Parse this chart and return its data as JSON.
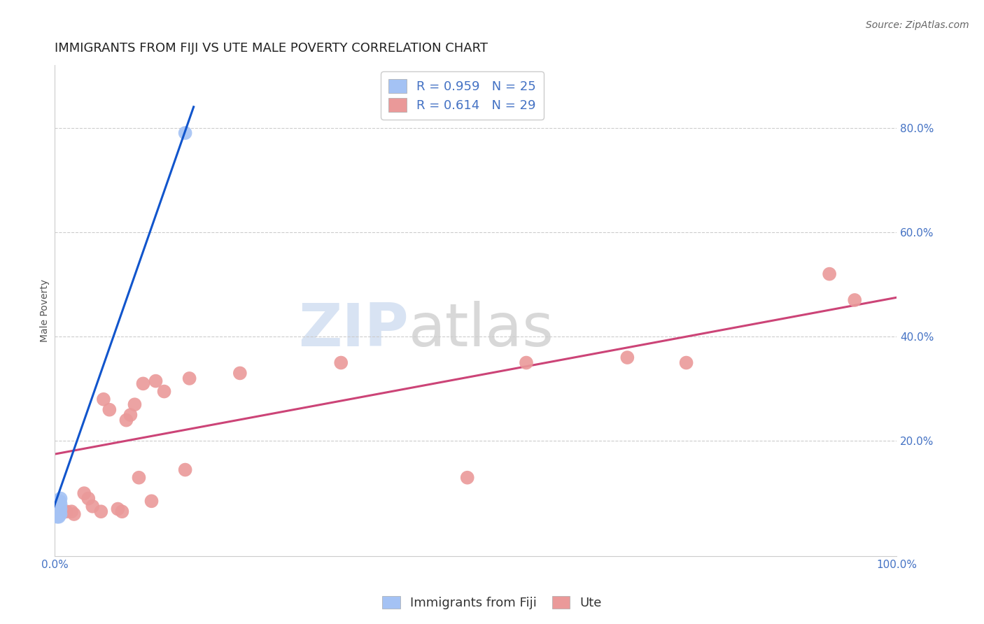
{
  "title": "IMMIGRANTS FROM FIJI VS UTE MALE POVERTY CORRELATION CHART",
  "source": "Source: ZipAtlas.com",
  "ylabel": "Male Poverty",
  "xlim": [
    0.0,
    1.0
  ],
  "ylim": [
    -0.02,
    0.92
  ],
  "xticks": [
    0.0,
    0.25,
    0.5,
    0.75,
    1.0
  ],
  "xtick_labels": [
    "0.0%",
    "",
    "",
    "",
    "100.0%"
  ],
  "yticks": [
    0.2,
    0.4,
    0.6,
    0.8
  ],
  "ytick_labels": [
    "20.0%",
    "40.0%",
    "60.0%",
    "80.0%"
  ],
  "blue_r": "0.959",
  "blue_n": "25",
  "pink_r": "0.614",
  "pink_n": "29",
  "legend_label_blue": "Immigrants from Fiji",
  "legend_label_pink": "Ute",
  "blue_color": "#a4c2f4",
  "pink_color": "#ea9999",
  "blue_line_color": "#1155cc",
  "pink_line_color": "#cc4477",
  "blue_scatter_x": [
    0.002,
    0.002,
    0.003,
    0.003,
    0.003,
    0.003,
    0.003,
    0.004,
    0.004,
    0.004,
    0.004,
    0.004,
    0.005,
    0.005,
    0.005,
    0.005,
    0.006,
    0.006,
    0.006,
    0.006,
    0.007,
    0.007,
    0.007,
    0.007,
    0.155
  ],
  "blue_scatter_y": [
    0.065,
    0.07,
    0.055,
    0.06,
    0.07,
    0.075,
    0.08,
    0.06,
    0.065,
    0.07,
    0.075,
    0.085,
    0.055,
    0.065,
    0.075,
    0.08,
    0.06,
    0.065,
    0.075,
    0.085,
    0.06,
    0.07,
    0.08,
    0.09,
    0.79
  ],
  "pink_scatter_x": [
    0.014,
    0.02,
    0.023,
    0.035,
    0.04,
    0.045,
    0.055,
    0.058,
    0.065,
    0.075,
    0.08,
    0.085,
    0.09,
    0.095,
    0.1,
    0.105,
    0.115,
    0.12,
    0.13,
    0.155,
    0.16,
    0.22,
    0.34,
    0.49,
    0.56,
    0.68,
    0.75,
    0.92,
    0.95
  ],
  "pink_scatter_y": [
    0.065,
    0.065,
    0.06,
    0.1,
    0.09,
    0.075,
    0.065,
    0.28,
    0.26,
    0.07,
    0.065,
    0.24,
    0.25,
    0.27,
    0.13,
    0.31,
    0.085,
    0.315,
    0.295,
    0.145,
    0.32,
    0.33,
    0.35,
    0.13,
    0.35,
    0.36,
    0.35,
    0.52,
    0.47
  ],
  "blue_line_x": [
    -0.005,
    0.165
  ],
  "blue_line_y": [
    0.055,
    0.84
  ],
  "pink_line_x": [
    0.0,
    1.0
  ],
  "pink_line_y": [
    0.175,
    0.475
  ],
  "watermark_zip": "ZIP",
  "watermark_atlas": "atlas",
  "background_color": "#ffffff",
  "grid_color": "#cccccc",
  "title_fontsize": 13,
  "axis_label_fontsize": 10,
  "tick_fontsize": 11,
  "legend_fontsize": 13,
  "source_fontsize": 10
}
